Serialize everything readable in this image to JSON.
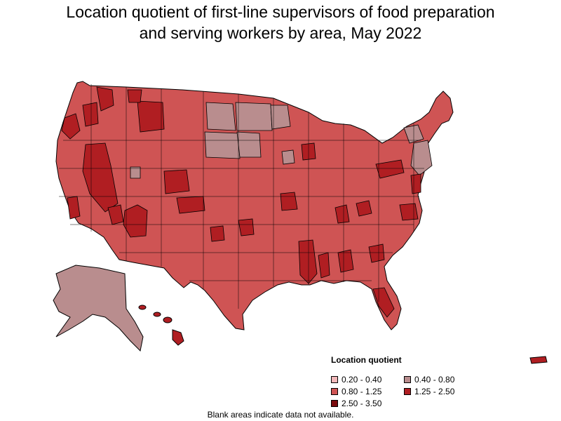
{
  "title_line1": "Location quotient of first-line supervisors of food preparation",
  "title_line2": "and serving workers by area, May 2022",
  "legend": {
    "title": "Location quotient",
    "items": [
      {
        "label": "0.20 - 0.40",
        "color": "#f2b8ba"
      },
      {
        "label": "0.40 - 0.80",
        "color": "#b98d8e"
      },
      {
        "label": "0.80 - 1.25",
        "color": "#cf5454"
      },
      {
        "label": "1.25 - 2.50",
        "color": "#b01e22"
      },
      {
        "label": "2.50 - 3.50",
        "color": "#7a0a0d"
      }
    ]
  },
  "note": "Blank areas indicate data not available.",
  "colors": {
    "low": "#b98d8e",
    "mid": "#cf5454",
    "high": "#b01e22",
    "top": "#7a0a0d",
    "border": "#000000"
  }
}
